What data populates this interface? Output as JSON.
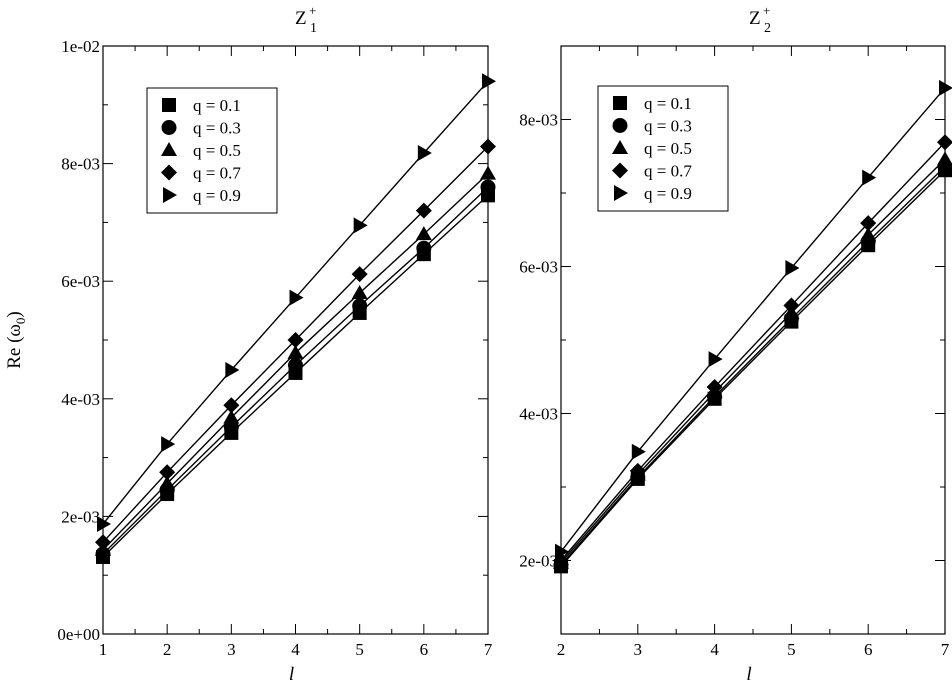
{
  "chart_data": [
    {
      "type": "line",
      "title": "Z",
      "title_sup": "+",
      "title_sub": "1",
      "xlabel": "l",
      "ylabel": "Re (ω",
      "ylabel_sub": "0",
      "ylabel_close": ")",
      "xlim": [
        1,
        7
      ],
      "ylim": [
        0,
        0.01
      ],
      "xticks": [
        1,
        2,
        3,
        4,
        5,
        6,
        7
      ],
      "xtick_labels": [
        "1",
        "2",
        "3",
        "4",
        "5",
        "6",
        "7"
      ],
      "yticks": [
        0,
        0.002,
        0.004,
        0.006,
        0.008,
        0.01
      ],
      "ytick_labels": [
        "0e+00",
        "2e-03",
        "4e-03",
        "6e-03",
        "8e-03",
        "1e-02"
      ],
      "legend_position": "top-left",
      "grid": false,
      "x": [
        1,
        2,
        3,
        4,
        5,
        6,
        7
      ],
      "series": [
        {
          "name": "q = 0.1",
          "marker": "square",
          "values": [
            0.00131,
            0.00238,
            0.00342,
            0.00444,
            0.00546,
            0.00646,
            0.00746
          ]
        },
        {
          "name": "q = 0.3",
          "marker": "circle",
          "values": [
            0.00136,
            0.00245,
            0.00352,
            0.00457,
            0.00558,
            0.00656,
            0.0076
          ]
        },
        {
          "name": "q = 0.5",
          "marker": "triangle",
          "values": [
            0.00143,
            0.00256,
            0.00368,
            0.00478,
            0.0058,
            0.0068,
            0.00783
          ]
        },
        {
          "name": "q = 0.7",
          "marker": "diamond",
          "values": [
            0.00156,
            0.00275,
            0.00389,
            0.005,
            0.00612,
            0.0072,
            0.00829
          ]
        },
        {
          "name": "q = 0.9",
          "marker": "triangle-right",
          "values": [
            0.00187,
            0.00323,
            0.00449,
            0.00572,
            0.00695,
            0.00818,
            0.0094
          ]
        }
      ]
    },
    {
      "type": "line",
      "title": "Z",
      "title_sup": "+",
      "title_sub": "2",
      "xlabel": "l",
      "ylabel": "",
      "xlim": [
        2,
        7
      ],
      "ylim": [
        0.001,
        0.009
      ],
      "xticks": [
        2,
        3,
        4,
        5,
        6,
        7
      ],
      "xtick_labels": [
        "2",
        "3",
        "4",
        "5",
        "6",
        "7"
      ],
      "yticks": [
        0.002,
        0.004,
        0.006,
        0.008
      ],
      "ytick_labels": [
        "2e-03",
        "4e-03",
        "6e-03",
        "8e-03"
      ],
      "legend_position": "top-left",
      "grid": false,
      "x": [
        2,
        3,
        4,
        5,
        6,
        7
      ],
      "series": [
        {
          "name": "q = 0.1",
          "marker": "square",
          "values": [
            0.00192,
            0.00311,
            0.0042,
            0.00525,
            0.00629,
            0.00731
          ]
        },
        {
          "name": "q = 0.3",
          "marker": "circle",
          "values": [
            0.00194,
            0.00313,
            0.00423,
            0.00529,
            0.00634,
            0.00736
          ]
        },
        {
          "name": "q = 0.5",
          "marker": "triangle",
          "values": [
            0.00197,
            0.00317,
            0.00429,
            0.00537,
            0.00643,
            0.00746
          ]
        },
        {
          "name": "q = 0.7",
          "marker": "diamond",
          "values": [
            0.002,
            0.00322,
            0.00436,
            0.00547,
            0.00659,
            0.00769
          ]
        },
        {
          "name": "q = 0.9",
          "marker": "triangle-right",
          "values": [
            0.00212,
            0.00348,
            0.00474,
            0.00598,
            0.00721,
            0.00843
          ]
        }
      ]
    }
  ]
}
